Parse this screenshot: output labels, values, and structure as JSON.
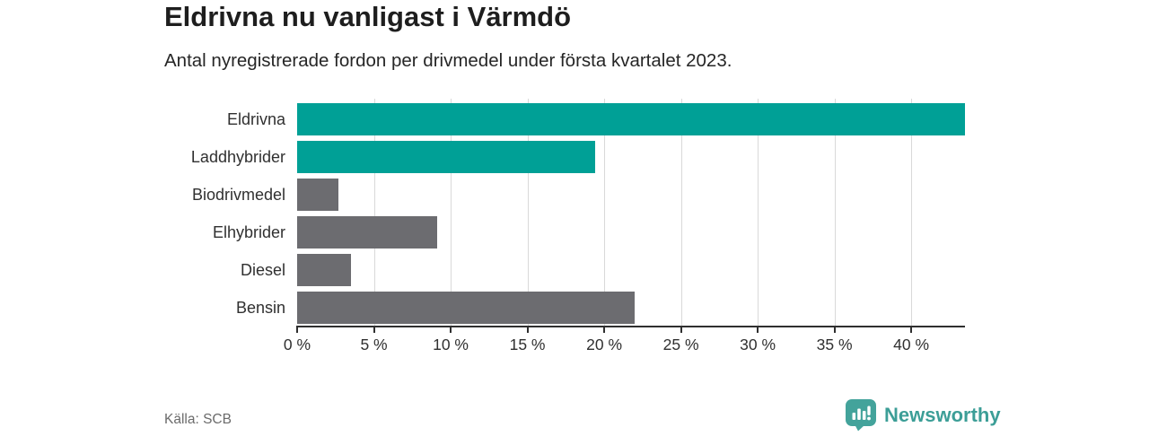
{
  "header": {
    "title": "Eldrivna nu vanligast i Värmdö",
    "subtitle": "Antal nyregistrerade fordon per drivmedel under första kvartalet 2023."
  },
  "chart_data": {
    "type": "bar",
    "orientation": "horizontal",
    "title": "Eldrivna nu vanligast i Värmdö",
    "subtitle": "Antal nyregistrerade fordon per drivmedel under första kvartalet 2023.",
    "categories": [
      "Eldrivna",
      "Laddhybrider",
      "Biodrivmedel",
      "Elhybrider",
      "Diesel",
      "Bensin"
    ],
    "values": [
      43.5,
      19.4,
      2.7,
      9.1,
      3.5,
      22.0
    ],
    "unit": "%",
    "bar_colors": [
      "#00a096",
      "#00a096",
      "#6c6c70",
      "#6c6c70",
      "#6c6c70",
      "#6c6c70"
    ],
    "xlim": [
      0,
      43.5
    ],
    "tick_values": [
      0,
      5,
      10,
      15,
      20,
      25,
      30,
      35,
      40
    ],
    "tick_labels": [
      "0 %",
      "5 %",
      "10 %",
      "15 %",
      "20 %",
      "25 %",
      "30 %",
      "35 %",
      "40 %"
    ],
    "grid": "vertical-gridlines-at-ticks",
    "legend": "none",
    "source": "SCB"
  },
  "colors": {
    "accent_teal": "#00a096",
    "muted_gray": "#6c6c70",
    "gridline": "#d9d9d9",
    "axis": "#2f2f2f",
    "logo_teal": "#43a39b",
    "logo_text_teal": "#3c9e97"
  },
  "footer": {
    "source_label": "Källa: SCB",
    "brand_name": "Newsworthy"
  }
}
